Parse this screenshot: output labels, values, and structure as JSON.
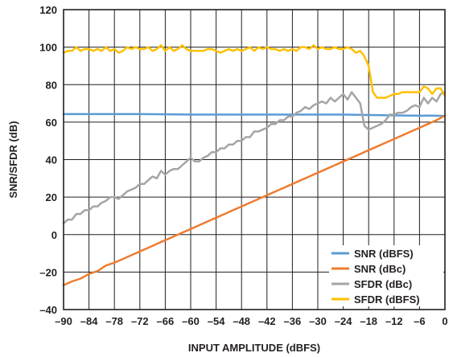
{
  "chart_data": {
    "type": "line",
    "title": "",
    "xlabel": "INPUT AMPLITUDE (dBFS)",
    "ylabel": "SNR/SFDR (dB)",
    "xlim": [
      -90,
      0
    ],
    "ylim": [
      -40,
      120
    ],
    "xticks": [
      -90,
      -84,
      -78,
      -72,
      -66,
      -60,
      -54,
      -48,
      -42,
      -36,
      -30,
      -24,
      -18,
      -12,
      -6,
      0
    ],
    "yticks": [
      -40,
      -20,
      0,
      20,
      40,
      60,
      80,
      100,
      120
    ],
    "xtick_labels": [
      "–90",
      "–84",
      "–78",
      "–72",
      "–66",
      "–60",
      "–54",
      "–48",
      "–42",
      "–36",
      "–30",
      "–24",
      "–18",
      "–12",
      "–6",
      "0"
    ],
    "ytick_labels": [
      "–40",
      "–20",
      "0",
      "20",
      "40",
      "60",
      "80",
      "100",
      "120"
    ],
    "grid": true,
    "legend_position": "bottom-right",
    "series": [
      {
        "name": "SNR (dBFS)",
        "color": "#5b9bd5",
        "x": [
          -90,
          -84,
          -78,
          -72,
          -66,
          -60,
          -54,
          -48,
          -42,
          -36,
          -30,
          -24,
          -18,
          -12,
          -6,
          -3,
          0
        ],
        "y": [
          64.3,
          64.3,
          64.3,
          64.3,
          64.2,
          64.0,
          64.0,
          64.0,
          64.0,
          64.0,
          64.0,
          64.0,
          63.8,
          63.6,
          63.4,
          63.5,
          63.3
        ]
      },
      {
        "name": "SNR (dBc)",
        "color": "#ed7d31",
        "x": [
          -90,
          -88,
          -86,
          -84,
          -82,
          -80,
          -78,
          -76,
          -74,
          -72,
          -70,
          -68,
          -66,
          -64,
          -62,
          -60,
          -58,
          -56,
          -54,
          -52,
          -50,
          -48,
          -46,
          -44,
          -42,
          -40,
          -38,
          -36,
          -34,
          -32,
          -30,
          -28,
          -26,
          -24,
          -22,
          -20,
          -18,
          -16,
          -14,
          -12,
          -10,
          -8,
          -6,
          -4,
          -2,
          0
        ],
        "y": [
          -27,
          -25,
          -23.5,
          -21,
          -19.5,
          -16.5,
          -15,
          -13,
          -11,
          -9,
          -7,
          -5,
          -3,
          -1,
          1,
          3,
          5,
          7,
          9,
          11,
          13,
          15,
          17,
          19,
          21,
          23,
          25,
          27,
          29,
          31,
          33,
          35,
          37,
          39,
          41,
          43,
          45,
          47,
          49,
          51,
          53,
          55,
          57,
          59,
          61,
          63.5
        ]
      },
      {
        "name": "SFDR (dBc)",
        "color": "#a5a5a5",
        "x": [
          -90,
          -89,
          -88,
          -87,
          -86,
          -85,
          -84,
          -83,
          -82,
          -81,
          -80,
          -79,
          -78,
          -77,
          -76,
          -75,
          -74,
          -73,
          -72,
          -71,
          -70,
          -69,
          -68,
          -67,
          -66,
          -65,
          -64,
          -63,
          -62,
          -61,
          -60,
          -59,
          -58,
          -57,
          -56,
          -55,
          -54,
          -53,
          -52,
          -51,
          -50,
          -49,
          -48,
          -47,
          -46,
          -45,
          -44,
          -43,
          -42,
          -41,
          -40,
          -39,
          -38,
          -37,
          -36,
          -35,
          -34,
          -33,
          -32,
          -31,
          -30,
          -29,
          -28,
          -27,
          -26,
          -25,
          -24,
          -23,
          -22,
          -21,
          -20,
          -19,
          -18,
          -17,
          -16,
          -15,
          -14,
          -13,
          -12,
          -11,
          -10,
          -9,
          -8,
          -7,
          -6,
          -5,
          -4,
          -3,
          -2,
          -1,
          0
        ],
        "y": [
          6,
          8,
          8,
          11,
          11,
          13,
          13,
          15,
          15,
          17,
          18,
          20,
          20,
          19,
          21,
          23,
          24,
          25,
          27,
          27,
          29,
          31,
          30,
          34,
          32,
          34,
          35,
          35,
          37,
          39,
          41,
          39,
          39,
          41,
          42,
          44,
          44,
          46,
          46,
          48,
          48,
          50,
          50,
          52,
          52,
          55,
          55,
          56,
          57,
          59,
          59,
          61,
          61,
          63,
          63,
          65,
          66,
          68,
          67,
          69,
          70,
          71,
          70,
          73,
          71,
          73,
          75,
          72,
          76,
          73,
          70,
          58,
          56,
          57,
          58,
          59,
          61,
          64,
          64,
          65,
          65,
          66,
          68,
          69,
          68,
          73,
          70,
          73,
          71,
          75,
          76
        ]
      },
      {
        "name": "SFDR (dBFS)",
        "color": "#ffc000",
        "x": [
          -90,
          -89,
          -88,
          -87,
          -86,
          -85,
          -84,
          -83,
          -82,
          -81,
          -80,
          -79,
          -78,
          -77,
          -76,
          -75,
          -74,
          -73,
          -72,
          -71,
          -70,
          -69,
          -68,
          -67,
          -66,
          -65,
          -64,
          -63,
          -62,
          -61,
          -60,
          -59,
          -58,
          -57,
          -56,
          -55,
          -54,
          -53,
          -52,
          -51,
          -50,
          -49,
          -48,
          -47,
          -46,
          -45,
          -44,
          -43,
          -42,
          -41,
          -40,
          -39,
          -38,
          -37,
          -36,
          -35,
          -34,
          -33,
          -32,
          -31,
          -30,
          -29,
          -28,
          -27,
          -26,
          -25,
          -24,
          -23,
          -22,
          -21,
          -20,
          -19,
          -18,
          -17,
          -16,
          -15,
          -14,
          -13,
          -12,
          -11,
          -10,
          -9,
          -8,
          -7,
          -6,
          -5,
          -4,
          -3,
          -2,
          -1,
          0
        ],
        "y": [
          97,
          98,
          98,
          100,
          98,
          99,
          99,
          98,
          99,
          98,
          100,
          98,
          99,
          97,
          98,
          100,
          99,
          100,
          99,
          99,
          100,
          98,
          99,
          101,
          98,
          100,
          98,
          99,
          101,
          99,
          98,
          98,
          98,
          98,
          99,
          99,
          98,
          97,
          98,
          99,
          98,
          99,
          98,
          99,
          100,
          98,
          100,
          99,
          100,
          99,
          99,
          98,
          99,
          98,
          99,
          98,
          100,
          100,
          99,
          101,
          99,
          100,
          99,
          99,
          100,
          99,
          99,
          100,
          99,
          97,
          98,
          95,
          90,
          76,
          73,
          73,
          73,
          74,
          75,
          75,
          76,
          76,
          76,
          76,
          76,
          79,
          78,
          75,
          78,
          78,
          74
        ]
      }
    ]
  }
}
